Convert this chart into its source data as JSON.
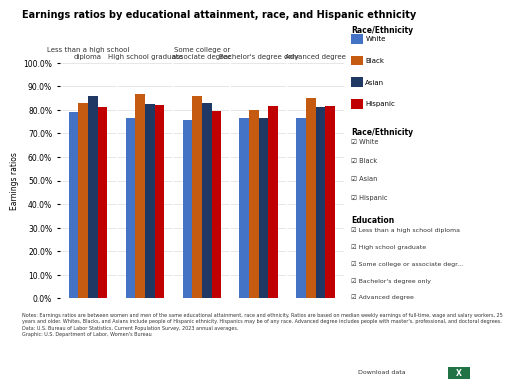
{
  "title": "Earnings ratios by educational attainment, race, and Hispanic ethnicity",
  "categories": [
    "Less than a high school\ndiploma",
    "High school graduate",
    "Some college or\nassociate degree",
    "Bachelor's degree only",
    "Advanced degree"
  ],
  "cat_labels_top": [
    "Less than a high school\ndiploma",
    "High school graduate",
    "Some college or\nassociate degree",
    "Bachelor's degree only",
    "Advanced degree"
  ],
  "series": {
    "White": [
      79.0,
      76.5,
      75.5,
      76.5,
      76.5
    ],
    "Black": [
      83.0,
      86.5,
      86.0,
      80.0,
      85.0
    ],
    "Asian": [
      86.0,
      82.5,
      83.0,
      76.5,
      81.0
    ],
    "Hispanic": [
      81.0,
      82.0,
      79.5,
      81.5,
      81.5
    ]
  },
  "colors": {
    "White": "#4472C4",
    "Black": "#C55A11",
    "Asian": "#1F3864",
    "Hispanic": "#C00000"
  },
  "ylabel": "Earnings ratios",
  "ylim": [
    0,
    100
  ],
  "yticks": [
    0,
    10,
    20,
    30,
    40,
    50,
    60,
    70,
    80,
    90,
    100
  ],
  "ytick_labels": [
    "0.0%",
    "10.0%",
    "20.0%",
    "30.0%",
    "40.0%",
    "50.0%",
    "60.0%",
    "70.0%",
    "80.0%",
    "90.0%",
    "100.0%"
  ],
  "legend_title1": "Race/Ethnicity",
  "legend_items1": [
    "White",
    "Black",
    "Asian",
    "Hispanic"
  ],
  "legend_title2": "Race/Ethnicity",
  "legend_items2": [
    "White",
    "Black",
    "Asian",
    "Hispanic"
  ],
  "legend_title3": "Education",
  "legend_items3": [
    "Less than a high school diploma",
    "High school graduate",
    "Some college or associate degr...",
    "Bachelor's degree only",
    "Advanced degree"
  ],
  "note_line1": "Notes: Earnings ratios are between women and men of the same educational attainment, race and ethnicity. Ratios are based on median weekly earnings of full-time, wage and salary workers, 25",
  "note_line2": "years and older. Whites, Blacks, and Asians include people of Hispanic ethnicity. Hispanics may be of any race. Advanced degree includes people with master's, professional, and doctoral degrees.",
  "note_line3": "Data: U.S. Bureau of Labor Statistics, Current Population Survey, 2023 annual averages.",
  "note_line4": "Graphic: U.S. Department of Labor, Women's Bureau",
  "bg_color": "#FFFFFF"
}
